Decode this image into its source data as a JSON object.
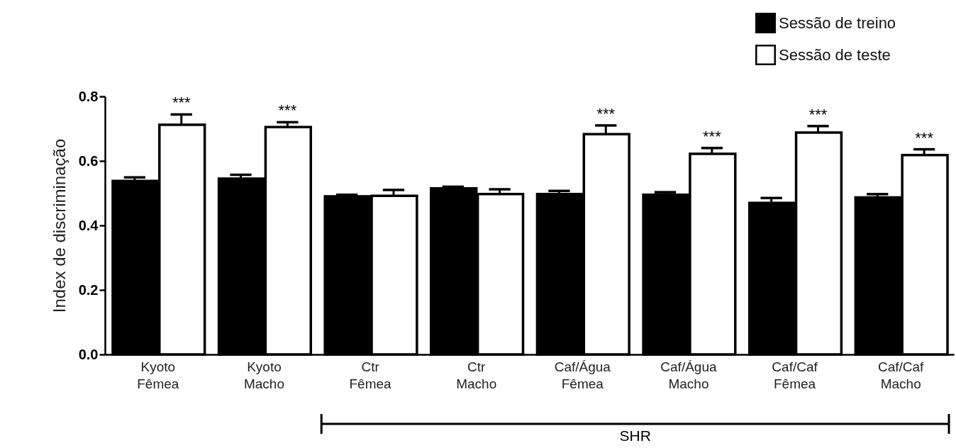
{
  "chart_data": {
    "type": "bar",
    "ylabel": "Index de discriminação",
    "categories": [
      "Kyoto Fêmea",
      "Kyoto Macho",
      "Ctr Fêmea",
      "Ctr Macho",
      "Caf/Água Fêmea",
      "Caf/Água Macho",
      "Caf/Caf Fêmea",
      "Caf/Caf Macho"
    ],
    "series": [
      {
        "name": "Sessão de treino",
        "color": "#000000",
        "values": [
          0.538,
          0.545,
          0.49,
          0.515,
          0.497,
          0.495,
          0.47,
          0.487
        ],
        "errors": [
          0.011,
          0.012,
          0.005,
          0.005,
          0.01,
          0.008,
          0.015,
          0.01
        ]
      },
      {
        "name": "Sessão de teste",
        "color": "#ffffff",
        "values": [
          0.712,
          0.705,
          0.492,
          0.497,
          0.683,
          0.622,
          0.688,
          0.618
        ],
        "errors": [
          0.032,
          0.015,
          0.018,
          0.015,
          0.027,
          0.018,
          0.02,
          0.018
        ]
      }
    ],
    "ylim": [
      0,
      0.8
    ],
    "yticks": [
      {
        "value": 0,
        "label": "0.0"
      },
      0.2,
      0.4,
      0.6,
      0.8
    ],
    "grid": false,
    "legend": "top right",
    "annotations": [
      {
        "text": "***",
        "x": "Kyoto Fêmea",
        "y": 0.712
      },
      {
        "text": "***",
        "x": "Kyoto Macho",
        "y": 0.705
      },
      {
        "text": "***",
        "x": "Caf/Água Fêmea",
        "y": 0.683
      },
      {
        "text": "***",
        "x": "Caf/Água Macho",
        "y": 0.622
      },
      {
        "text": "***",
        "x": "Caf/Caf Fêmea",
        "y": 0.688
      },
      {
        "text": "***",
        "x": "Caf/Caf Macho",
        "y": 0.618
      },
      "SHR"
    ]
  }
}
